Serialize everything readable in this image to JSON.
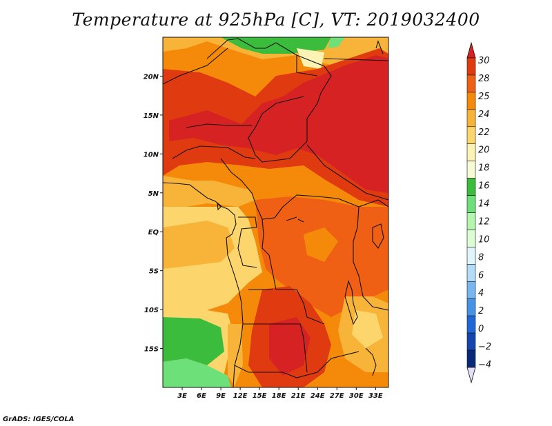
{
  "title": "Temperature at 925hPa [C], VT: 2019032400",
  "credit": "GrADS: IGES/COLA",
  "map": {
    "lon_range": [
      0,
      35
    ],
    "lat_range": [
      -20,
      25
    ],
    "lat_ticks": [
      {
        "lat": 20,
        "label": "20N"
      },
      {
        "lat": 15,
        "label": "15N"
      },
      {
        "lat": 10,
        "label": "10N"
      },
      {
        "lat": 5,
        "label": "5N"
      },
      {
        "lat": 0,
        "label": "EQ"
      },
      {
        "lat": -5,
        "label": "5S"
      },
      {
        "lat": -10,
        "label": "10S"
      },
      {
        "lat": -15,
        "label": "15S"
      }
    ],
    "lon_ticks": [
      {
        "lon": 3,
        "label": "3E"
      },
      {
        "lon": 6,
        "label": "6E"
      },
      {
        "lon": 9,
        "label": "9E"
      },
      {
        "lon": 12,
        "label": "12E"
      },
      {
        "lon": 15,
        "label": "15E"
      },
      {
        "lon": 18,
        "label": "18E"
      },
      {
        "lon": 21,
        "label": "21E"
      },
      {
        "lon": 24,
        "label": "24E"
      },
      {
        "lon": 27,
        "label": "27E"
      },
      {
        "lon": 30,
        "label": "30E"
      },
      {
        "lon": 33,
        "label": "33E"
      }
    ]
  },
  "colorbar": {
    "levels": [
      {
        "label": "30",
        "value": 30
      },
      {
        "label": "28",
        "value": 28
      },
      {
        "label": "25",
        "value": 25
      },
      {
        "label": "24",
        "value": 24
      },
      {
        "label": "22",
        "value": 22
      },
      {
        "label": "20",
        "value": 20
      },
      {
        "label": "18",
        "value": 18
      },
      {
        "label": "16",
        "value": 16
      },
      {
        "label": "14",
        "value": 14
      },
      {
        "label": "12",
        "value": 12
      },
      {
        "label": "10",
        "value": 10
      },
      {
        "label": "8",
        "value": 8
      },
      {
        "label": "6",
        "value": 6
      },
      {
        "label": "4",
        "value": 4
      },
      {
        "label": "2",
        "value": 2
      },
      {
        "label": "0",
        "value": 0
      },
      {
        "label": "−2",
        "value": -2
      },
      {
        "label": "−4",
        "value": -4
      }
    ],
    "colors": [
      "#d62222",
      "#e03a10",
      "#f06014",
      "#f58a0a",
      "#f8b438",
      "#fcd66c",
      "#fcf2b4",
      "#f8fad4",
      "#3cbc3c",
      "#6ee07a",
      "#b4f6ac",
      "#dcfcd4",
      "#e0f4fc",
      "#b4dcf8",
      "#78b6f0",
      "#4692e6",
      "#2068d8",
      "#1446b0",
      "#082878",
      "#e2e0f8"
    ]
  }
}
